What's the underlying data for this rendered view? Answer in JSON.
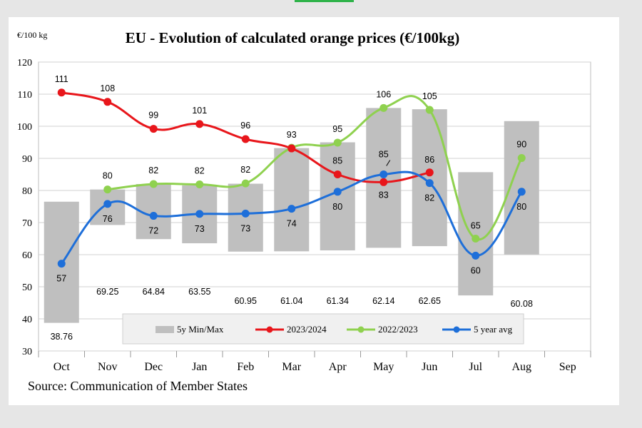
{
  "chart_data": {
    "type": "line",
    "title": "EU  -  Evolution of calculated orange prices (€/100kg)",
    "ylabel": "€/100 kg",
    "source": "Source: Communication of Member States",
    "categories": [
      "Oct",
      "Nov",
      "Dec",
      "Jan",
      "Feb",
      "Mar",
      "Apr",
      "May",
      "Jun",
      "Jul",
      "Aug",
      "Sep"
    ],
    "ylim": [
      30,
      120
    ],
    "yticks": [
      30,
      40,
      50,
      60,
      70,
      80,
      90,
      100,
      110,
      120
    ],
    "grid": true,
    "legend_position": "bottom",
    "range_bars": {
      "name": "5y Min/Max",
      "color": "#bfbfbf",
      "min": [
        38.76,
        69.25,
        64.84,
        63.55,
        60.95,
        61.04,
        61.34,
        62.14,
        62.65,
        47.3,
        60.08,
        null
      ],
      "max": [
        76.5,
        80.3,
        82.0,
        81.6,
        82.1,
        93.2,
        95.0,
        105.7,
        105.3,
        85.7,
        101.6,
        null
      ],
      "min_labels": [
        "38.76",
        "69.25",
        "64.84",
        "63.55",
        "60.95",
        "61.04",
        "61.34",
        "62.14",
        "62.65",
        "",
        "60.08",
        ""
      ]
    },
    "series": [
      {
        "name": "2023/2024",
        "color": "#e8161b",
        "values": [
          110.5,
          107.6,
          99.2,
          100.7,
          96.0,
          93.1,
          85.0,
          82.6,
          85.6,
          null,
          null,
          null
        ],
        "labels": [
          "111",
          "108",
          "99",
          "101",
          "96",
          "93",
          "85",
          "83",
          "86",
          "",
          "",
          ""
        ]
      },
      {
        "name": "2022/2023",
        "color": "#8fd14f",
        "values": [
          null,
          80.3,
          82.0,
          81.9,
          82.2,
          93.3,
          94.9,
          105.7,
          105.1,
          65.0,
          90.1,
          null
        ],
        "labels": [
          "",
          "80",
          "82",
          "82",
          "82",
          "",
          "95",
          "106",
          "105",
          "65",
          "90",
          ""
        ]
      },
      {
        "name": "5 year avg",
        "color": "#1e6fd9",
        "values": [
          57.2,
          75.8,
          72.1,
          72.7,
          72.8,
          74.3,
          79.6,
          85.0,
          82.3,
          59.7,
          79.6,
          null
        ],
        "labels": [
          "57",
          "76",
          "72",
          "73",
          "73",
          "74",
          "80",
          "85",
          "82",
          "60",
          "80",
          ""
        ]
      }
    ]
  }
}
